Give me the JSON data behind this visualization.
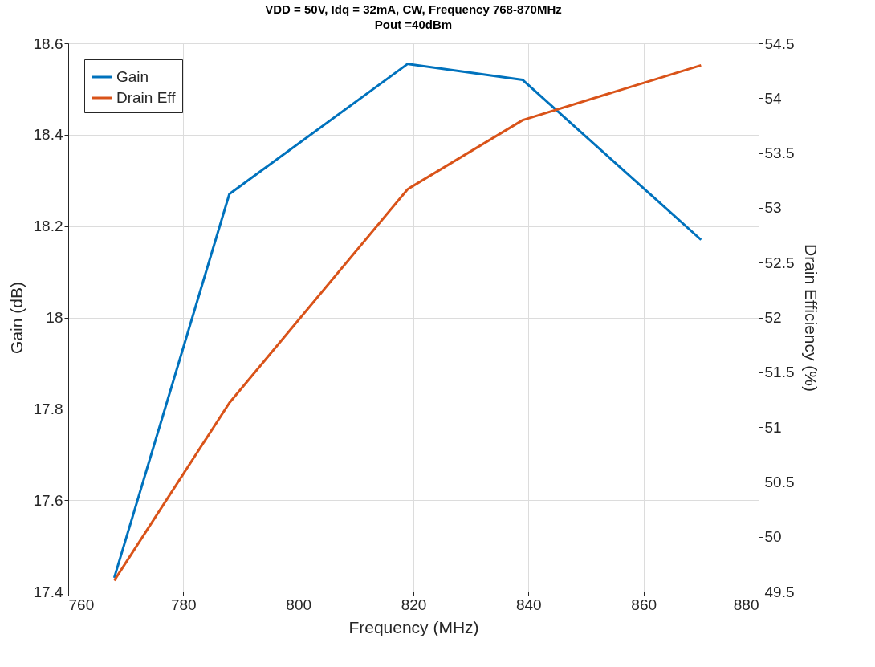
{
  "chart_data": {
    "type": "line",
    "title": "VDD = 50V, Idq = 32mA, CW, Frequency 768-870MHz",
    "subtitle": "Pout =40dBm",
    "xlabel": "Frequency (MHz)",
    "ylabel": "Gain (dB)",
    "y2label": "Drain Efficiency (%)",
    "x": [
      768,
      788,
      819,
      839,
      870
    ],
    "series": [
      {
        "name": "Gain",
        "color": "#0072bd",
        "values": [
          17.43,
          18.27,
          18.555,
          18.52,
          18.17
        ]
      },
      {
        "name": "Drain Eff",
        "color": "#d95319",
        "axis": "y2",
        "values": [
          49.6,
          51.22,
          53.17,
          53.8,
          54.3
        ]
      }
    ],
    "xlim": [
      760,
      880
    ],
    "xticks": [
      760,
      780,
      800,
      820,
      840,
      860,
      880
    ],
    "ylim": [
      17.4,
      18.6
    ],
    "yticks": [
      17.4,
      17.6,
      17.8,
      18,
      18.2,
      18.4,
      18.6
    ],
    "y2lim": [
      49.5,
      54.5
    ],
    "y2ticks": [
      49.5,
      50,
      50.5,
      51,
      51.5,
      52,
      52.5,
      53,
      53.5,
      54,
      54.5
    ],
    "grid": true,
    "legend": "top left",
    "line_style": "solid",
    "marker": "none"
  }
}
